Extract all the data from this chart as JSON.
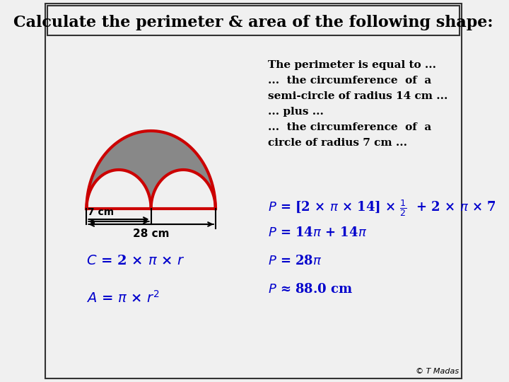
{
  "title": "Calculate the perimeter & area of the following shape:",
  "bg_color": "#f0f0f0",
  "border_color": "#333333",
  "shape_fill_gray": "#888888",
  "shape_fill_white": "#ffffff",
  "shape_stroke_red": "#cc0000",
  "shape_stroke_black": "#000000",
  "label_7cm": "7 cm",
  "label_28cm": "28 cm",
  "text_perimeter_intro": "The perimeter is equal to ...",
  "text_perimeter_line2": "...  the circumference  of  a",
  "text_perimeter_line3": "semi-circle of radius 14 cm ...",
  "text_perimeter_line4": "... plus ...",
  "text_perimeter_line5": "...  the circumference  of  a",
  "text_perimeter_line6": "circle of radius 7 cm ...",
  "formula_C": "$\\mathit{C}$ = 2 × $\\pi$ × $\\mathit{r}$",
  "formula_A": "$\\mathit{A}$ = $\\pi$ × $\\mathit{r}$$^2$",
  "formula_P1": "$\\mathit{P}$ = [2 × $\\pi$ × 14] × $\\frac{1}{2}$  + 2 × $\\pi$ × 7",
  "formula_P2": "$\\mathit{P}$ = 14$\\pi$ + 14$\\pi$",
  "formula_P3": "$\\mathit{P}$ = 28$\\pi$",
  "formula_P4": "$\\mathit{P}$ ≈ 88.0 cm",
  "credit": "© T Madas",
  "blue_color": "#0000cc",
  "dark_blue": "#00008B"
}
